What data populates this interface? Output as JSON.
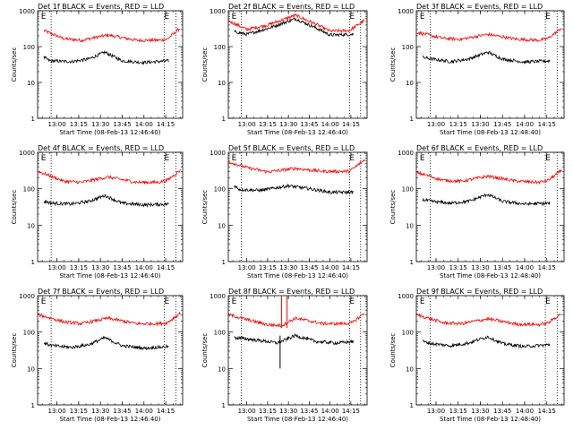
{
  "chart_data": [
    {
      "type": "line",
      "title": "Det 1f BLACK = Events, RED = LLD",
      "xlabel": "Start Time (08-Feb-13 12:46:40)",
      "ylabel": "Counts/sec",
      "xlim": [
        "12:46:40",
        "14:26:40"
      ],
      "ylim": [
        1,
        1000
      ],
      "yscale": "log",
      "x_ticks": [
        "13:00",
        "13:15",
        "13:30",
        "13:45",
        "14:00",
        "14:15"
      ],
      "y_ticks": [
        "1",
        "10",
        "100",
        "1000"
      ],
      "markers": [
        {
          "x": "12:49",
          "label": "E"
        },
        {
          "x": "14:14",
          "label": "E"
        }
      ],
      "vlines": [
        "12:56",
        "14:14",
        "14:22"
      ],
      "series": [
        {
          "color": "#ff0000",
          "points": [
            [
              "12:51",
              280
            ],
            [
              "13:05",
              165
            ],
            [
              "13:17",
              150
            ],
            [
              "13:35",
              210
            ],
            [
              "13:55",
              150
            ],
            [
              "14:10",
              150
            ],
            [
              "14:16",
              160
            ],
            [
              "14:25",
              330
            ]
          ]
        },
        {
          "color": "#000000",
          "points": [
            [
              "12:51",
              50
            ],
            [
              "12:55",
              40
            ],
            [
              "13:10",
              38
            ],
            [
              "13:22",
              45
            ],
            [
              "13:33",
              70
            ],
            [
              "13:45",
              40
            ],
            [
              "14:00",
              36
            ],
            [
              "14:17",
              40
            ]
          ]
        }
      ]
    },
    {
      "type": "line",
      "title": "Det 2f BLACK = Events, RED = LLD",
      "xlabel": "Start Time (08-Feb-13 12:46:40)",
      "ylabel": "Counts/sec",
      "xlim": [
        "12:46:40",
        "14:26:40"
      ],
      "ylim": [
        1,
        1000
      ],
      "yscale": "log",
      "x_ticks": [
        "13:00",
        "13:15",
        "13:30",
        "13:45",
        "14:00",
        "14:15"
      ],
      "y_ticks": [
        "1",
        "10",
        "100",
        "1000"
      ],
      "markers": [
        {
          "x": "12:49",
          "label": "E"
        },
        {
          "x": "14:14",
          "label": "E"
        }
      ],
      "vlines": [
        "12:56",
        "14:14",
        "14:22"
      ],
      "series": [
        {
          "color": "#ff0000",
          "points": [
            [
              "12:47",
              520
            ],
            [
              "13:00",
              300
            ],
            [
              "13:15",
              400
            ],
            [
              "13:35",
              750
            ],
            [
              "13:50",
              420
            ],
            [
              "14:00",
              270
            ],
            [
              "14:14",
              280
            ],
            [
              "14:25",
              550
            ]
          ]
        },
        {
          "color": "#000000",
          "points": [
            [
              "12:51",
              260
            ],
            [
              "13:00",
              220
            ],
            [
              "13:15",
              320
            ],
            [
              "13:35",
              600
            ],
            [
              "13:50",
              330
            ],
            [
              "14:00",
              210
            ],
            [
              "14:17",
              220
            ]
          ]
        }
      ]
    },
    {
      "type": "line",
      "title": "Det 3f BLACK = Events, RED = LLD",
      "xlabel": "Start Time (08-Feb-13 12:48:40)",
      "ylabel": "Counts/sec",
      "xlim": [
        "12:46:40",
        "14:26:40"
      ],
      "ylim": [
        1,
        1000
      ],
      "yscale": "log",
      "x_ticks": [
        "13:00",
        "13:15",
        "13:30",
        "13:45",
        "14:00",
        "14:15"
      ],
      "y_ticks": [
        "1",
        "10",
        "100",
        "1000"
      ],
      "markers": [
        {
          "x": "12:49",
          "label": "E"
        },
        {
          "x": "14:14",
          "label": "E"
        }
      ],
      "vlines": [
        "12:56",
        "14:14",
        "14:22"
      ],
      "series": [
        {
          "color": "#ff0000",
          "points": [
            [
              "12:47",
              250
            ],
            [
              "13:05",
              170
            ],
            [
              "13:17",
              160
            ],
            [
              "13:35",
              220
            ],
            [
              "13:55",
              160
            ],
            [
              "14:10",
              150
            ],
            [
              "14:16",
              170
            ],
            [
              "14:25",
              330
            ]
          ]
        },
        {
          "color": "#000000",
          "points": [
            [
              "12:51",
              50
            ],
            [
              "12:57",
              45
            ],
            [
              "13:10",
              38
            ],
            [
              "13:22",
              45
            ],
            [
              "13:35",
              70
            ],
            [
              "13:45",
              45
            ],
            [
              "14:00",
              37
            ],
            [
              "14:17",
              40
            ]
          ]
        }
      ]
    },
    {
      "type": "line",
      "title": "Det 4f BLACK = Events, RED = LLD",
      "xlabel": "Start Time (08-Feb-13 12:46:40)",
      "ylabel": "Counts/sec",
      "xlim": [
        "12:46:40",
        "14:26:40"
      ],
      "ylim": [
        1,
        1000
      ],
      "yscale": "log",
      "x_ticks": [
        "13:00",
        "13:15",
        "13:30",
        "13:45",
        "14:00",
        "14:15"
      ],
      "y_ticks": [
        "1",
        "10",
        "100",
        "1000"
      ],
      "markers": [
        {
          "x": "12:49",
          "label": "E"
        },
        {
          "x": "14:14",
          "label": "E"
        }
      ],
      "vlines": [
        "12:56",
        "14:14",
        "14:22"
      ],
      "series": [
        {
          "color": "#ff0000",
          "points": [
            [
              "12:47",
              300
            ],
            [
              "13:05",
              160
            ],
            [
              "13:17",
              150
            ],
            [
              "13:35",
              210
            ],
            [
              "13:55",
              150
            ],
            [
              "14:10",
              150
            ],
            [
              "14:16",
              170
            ],
            [
              "14:25",
              320
            ]
          ]
        },
        {
          "color": "#000000",
          "points": [
            [
              "12:51",
              45
            ],
            [
              "12:57",
              40
            ],
            [
              "13:10",
              38
            ],
            [
              "13:22",
              45
            ],
            [
              "13:33",
              65
            ],
            [
              "13:45",
              40
            ],
            [
              "14:00",
              36
            ],
            [
              "14:17",
              38
            ]
          ]
        }
      ]
    },
    {
      "type": "line",
      "title": "Det 5f BLACK = Events, RED = LLD",
      "xlabel": "Start Time (08-Feb-13 12:46:40)",
      "ylabel": "Counts/sec",
      "xlim": [
        "12:46:40",
        "14:26:40"
      ],
      "ylim": [
        1,
        1000
      ],
      "yscale": "log",
      "x_ticks": [
        "13:00",
        "13:15",
        "13:30",
        "13:45",
        "14:00",
        "14:15"
      ],
      "y_ticks": [
        "1",
        "10",
        "100",
        "1000"
      ],
      "markers": [
        {
          "x": "12:49",
          "label": "E"
        },
        {
          "x": "14:14",
          "label": "E"
        }
      ],
      "vlines": [
        "12:56",
        "14:14",
        "14:22"
      ],
      "series": [
        {
          "color": "#ff0000",
          "points": [
            [
              "12:47",
              550
            ],
            [
              "13:00",
              380
            ],
            [
              "13:15",
              290
            ],
            [
              "13:35",
              360
            ],
            [
              "13:55",
              300
            ],
            [
              "14:14",
              300
            ],
            [
              "14:25",
              620
            ]
          ]
        },
        {
          "color": "#000000",
          "points": [
            [
              "12:51",
              120
            ],
            [
              "12:55",
              95
            ],
            [
              "13:10",
              90
            ],
            [
              "13:30",
              120
            ],
            [
              "13:45",
              100
            ],
            [
              "14:00",
              80
            ],
            [
              "14:17",
              80
            ]
          ]
        }
      ]
    },
    {
      "type": "line",
      "title": "Det 6f BLACK = Events, RED = LLD",
      "xlabel": "Start Time (08-Feb-13 12:48:40)",
      "ylabel": "Counts/sec",
      "xlim": [
        "12:46:40",
        "14:26:40"
      ],
      "ylim": [
        1,
        1000
      ],
      "yscale": "log",
      "x_ticks": [
        "13:00",
        "13:15",
        "13:30",
        "13:45",
        "14:00",
        "14:15"
      ],
      "y_ticks": [
        "1",
        "10",
        "100",
        "1000"
      ],
      "markers": [
        {
          "x": "12:49",
          "label": "E"
        },
        {
          "x": "14:14",
          "label": "E"
        }
      ],
      "vlines": [
        "12:56",
        "14:14",
        "14:22"
      ],
      "series": [
        {
          "color": "#ff0000",
          "points": [
            [
              "12:47",
              280
            ],
            [
              "13:05",
              170
            ],
            [
              "13:17",
              160
            ],
            [
              "13:35",
              220
            ],
            [
              "13:55",
              160
            ],
            [
              "14:10",
              150
            ],
            [
              "14:16",
              170
            ],
            [
              "14:25",
              320
            ]
          ]
        },
        {
          "color": "#000000",
          "points": [
            [
              "12:51",
              50
            ],
            [
              "12:57",
              45
            ],
            [
              "13:10",
              40
            ],
            [
              "13:22",
              45
            ],
            [
              "13:35",
              70
            ],
            [
              "13:45",
              45
            ],
            [
              "14:00",
              38
            ],
            [
              "14:17",
              40
            ]
          ]
        }
      ]
    },
    {
      "type": "line",
      "title": "Det 7f BLACK = Events, RED = LLD",
      "xlabel": "Start Time (08-Feb-13 12:46:40)",
      "ylabel": "Counts/sec",
      "xlim": [
        "12:46:40",
        "14:26:40"
      ],
      "ylim": [
        1,
        1000
      ],
      "yscale": "log",
      "x_ticks": [
        "13:00",
        "13:15",
        "13:30",
        "13:45",
        "14:00",
        "14:15"
      ],
      "y_ticks": [
        "1",
        "10",
        "100",
        "1000"
      ],
      "markers": [
        {
          "x": "12:49",
          "label": "E"
        },
        {
          "x": "14:14",
          "label": "E"
        }
      ],
      "vlines": [
        "12:56",
        "14:14",
        "14:22"
      ],
      "series": [
        {
          "color": "#ff0000",
          "points": [
            [
              "12:47",
              300
            ],
            [
              "13:05",
              190
            ],
            [
              "13:17",
              170
            ],
            [
              "13:35",
              240
            ],
            [
              "13:55",
              170
            ],
            [
              "14:10",
              170
            ],
            [
              "14:16",
              180
            ],
            [
              "14:25",
              330
            ]
          ]
        },
        {
          "color": "#000000",
          "points": [
            [
              "12:51",
              50
            ],
            [
              "12:57",
              42
            ],
            [
              "13:10",
              38
            ],
            [
              "13:22",
              45
            ],
            [
              "13:33",
              70
            ],
            [
              "13:45",
              42
            ],
            [
              "14:00",
              36
            ],
            [
              "14:17",
              40
            ]
          ]
        }
      ]
    },
    {
      "type": "line",
      "title": "Det 8f BLACK = Events, RED = LLD",
      "xlabel": "Start Time (08-Feb-13 12:46:40)",
      "ylabel": "Counts/sec",
      "xlim": [
        "12:46:40",
        "14:26:40"
      ],
      "ylim": [
        1,
        1000
      ],
      "yscale": "log",
      "x_ticks": [
        "13:00",
        "13:15",
        "13:30",
        "13:45",
        "14:00",
        "14:15"
      ],
      "y_ticks": [
        "1",
        "10",
        "100",
        "1000"
      ],
      "markers": [
        {
          "x": "12:49",
          "label": "E"
        },
        {
          "x": "14:14",
          "label": "E"
        }
      ],
      "vlines": [
        "12:56",
        "14:14",
        "14:22"
      ],
      "spikes": [
        {
          "color": "#ff0000",
          "x": "13:25",
          "y_low": 130,
          "y_high": 1000
        },
        {
          "color": "#ff0000",
          "x": "13:29",
          "y_low": 130,
          "y_high": 1000
        },
        {
          "color": "#000000",
          "x": "13:24",
          "y_low": 10,
          "y_high": 80
        }
      ],
      "series": [
        {
          "color": "#ff0000",
          "points": [
            [
              "12:47",
              300
            ],
            [
              "13:00",
              220
            ],
            [
              "13:15",
              160
            ],
            [
              "13:25",
              150
            ],
            [
              "13:35",
              240
            ],
            [
              "13:55",
              170
            ],
            [
              "14:10",
              170
            ],
            [
              "14:16",
              180
            ],
            [
              "14:25",
              340
            ]
          ]
        },
        {
          "color": "#000000",
          "points": [
            [
              "12:51",
              70
            ],
            [
              "13:00",
              65
            ],
            [
              "13:15",
              55
            ],
            [
              "13:22",
              50
            ],
            [
              "13:35",
              80
            ],
            [
              "13:50",
              55
            ],
            [
              "14:05",
              50
            ],
            [
              "14:17",
              55
            ]
          ]
        }
      ]
    },
    {
      "type": "line",
      "title": "Det 9f BLACK = Events, RED = LLD",
      "xlabel": "Start Time (08-Feb-13 12:48:40)",
      "ylabel": "Counts/sec",
      "xlim": [
        "12:46:40",
        "14:26:40"
      ],
      "ylim": [
        1,
        1000
      ],
      "yscale": "log",
      "x_ticks": [
        "13:00",
        "13:15",
        "13:30",
        "13:45",
        "14:00",
        "14:15"
      ],
      "y_ticks": [
        "1",
        "10",
        "100",
        "1000"
      ],
      "markers": [
        {
          "x": "12:49",
          "label": "E"
        },
        {
          "x": "14:14",
          "label": "E"
        }
      ],
      "vlines": [
        "12:56",
        "14:14",
        "14:22"
      ],
      "series": [
        {
          "color": "#ff0000",
          "points": [
            [
              "12:47",
              300
            ],
            [
              "13:05",
              180
            ],
            [
              "13:17",
              170
            ],
            [
              "13:35",
              230
            ],
            [
              "13:55",
              165
            ],
            [
              "14:10",
              160
            ],
            [
              "14:16",
              180
            ],
            [
              "14:25",
              330
            ]
          ]
        },
        {
          "color": "#000000",
          "points": [
            [
              "12:51",
              55
            ],
            [
              "12:57",
              48
            ],
            [
              "13:10",
              42
            ],
            [
              "13:22",
              50
            ],
            [
              "13:35",
              75
            ],
            [
              "13:45",
              48
            ],
            [
              "14:00",
              40
            ],
            [
              "14:17",
              45
            ]
          ]
        }
      ]
    }
  ]
}
